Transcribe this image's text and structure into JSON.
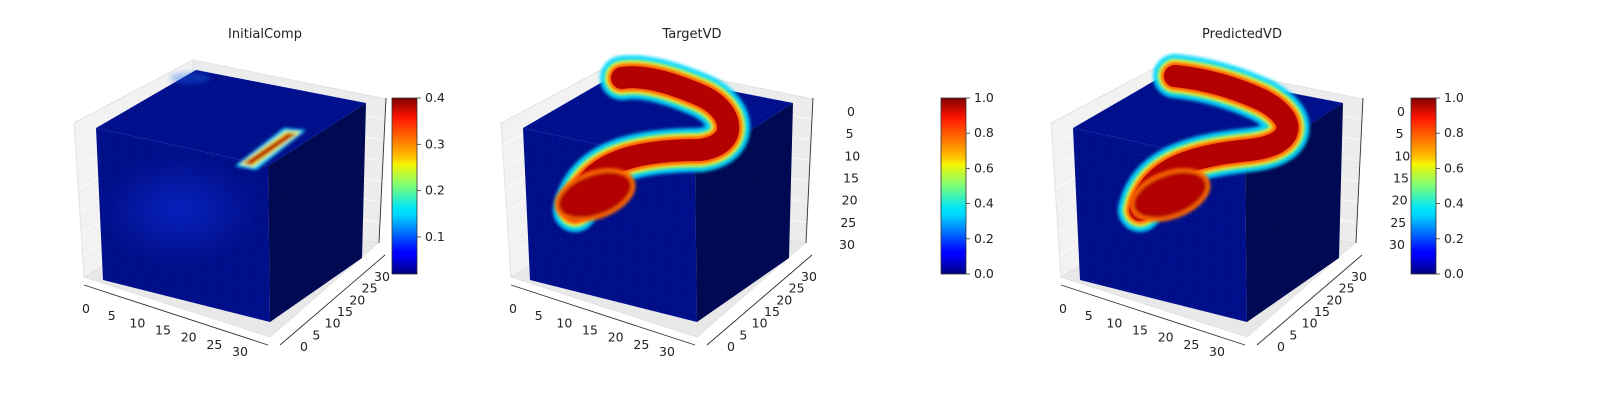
{
  "chart_data": [
    {
      "type": "heatmap",
      "title": "InitialComp",
      "x_ticks": [
        "0",
        "5",
        "10",
        "15",
        "20",
        "25",
        "30"
      ],
      "y_ticks": [
        "0",
        "5",
        "10",
        "15",
        "20",
        "25",
        "30"
      ],
      "z_ticks": [],
      "xlim": [
        0,
        32
      ],
      "ylim": [
        0,
        32
      ],
      "zlim": [
        0,
        32
      ],
      "grid_size": [
        32,
        32,
        32
      ],
      "colormap": "jet",
      "colorbar": {
        "min": 0.02,
        "max": 0.4,
        "ticks": [
          "0.1",
          "0.2",
          "0.3",
          "0.4"
        ]
      },
      "top_face_feature": {
        "shape": "short straight bar near back-right corner",
        "peak_value": 0.4,
        "background_value": 0.05
      }
    },
    {
      "type": "heatmap",
      "title": "TargetVD",
      "x_ticks": [
        "0",
        "5",
        "10",
        "15",
        "20",
        "25",
        "30"
      ],
      "y_ticks": [
        "0",
        "5",
        "10",
        "15",
        "20",
        "25",
        "30"
      ],
      "z_ticks": [
        "0",
        "5",
        "10",
        "15",
        "20",
        "25",
        "30"
      ],
      "xlim": [
        0,
        32
      ],
      "ylim": [
        0,
        32
      ],
      "zlim": [
        0,
        32
      ],
      "grid_size": [
        32,
        32,
        32
      ],
      "colormap": "jet",
      "colorbar": {
        "min": 0.0,
        "max": 1.0,
        "ticks": [
          "0.0",
          "0.2",
          "0.4",
          "0.6",
          "0.8",
          "1.0"
        ]
      },
      "front_face_feature": {
        "shape": "curved channel rising from lower-left to upper-right",
        "peak_value": 1.0,
        "background_value": 0.02
      }
    },
    {
      "type": "heatmap",
      "title": "PredictedVD",
      "x_ticks": [
        "0",
        "5",
        "10",
        "15",
        "20",
        "25",
        "30"
      ],
      "y_ticks": [
        "0",
        "5",
        "10",
        "15",
        "20",
        "25",
        "30"
      ],
      "z_ticks": [
        "0",
        "5",
        "10",
        "15",
        "20",
        "25",
        "30"
      ],
      "xlim": [
        0,
        32
      ],
      "ylim": [
        0,
        32
      ],
      "zlim": [
        0,
        32
      ],
      "grid_size": [
        32,
        32,
        32
      ],
      "colormap": "jet",
      "colorbar": {
        "min": 0.0,
        "max": 1.0,
        "ticks": [
          "0.0",
          "0.2",
          "0.4",
          "0.6",
          "0.8",
          "1.0"
        ]
      },
      "front_face_feature": {
        "shape": "curved channel rising from lower-left to upper-right",
        "peak_value": 1.0,
        "background_value": 0.02
      }
    }
  ]
}
